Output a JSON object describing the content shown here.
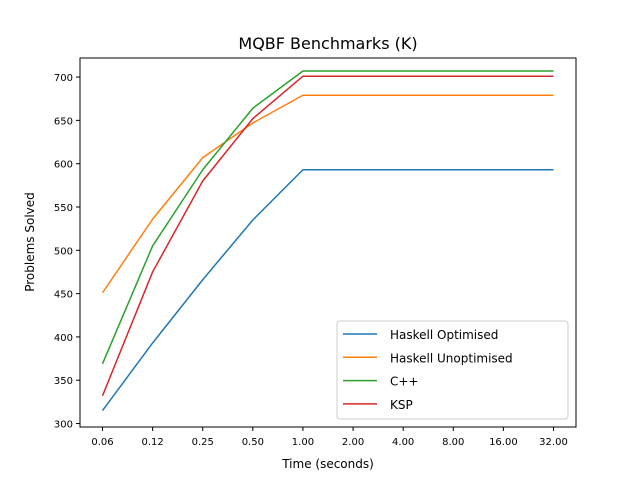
{
  "chart_data": {
    "type": "line",
    "title": "MQBF Benchmarks (K)",
    "xlabel": "Time (seconds)",
    "ylabel": "Problems Solved",
    "x": [
      "0.06",
      "0.12",
      "0.25",
      "0.50",
      "1.00",
      "2.00",
      "4.00",
      "8.00",
      "16.00",
      "32.00"
    ],
    "y_ticks": [
      "300",
      "350",
      "400",
      "450",
      "500",
      "550",
      "600",
      "650",
      "700"
    ],
    "ylim": [
      296,
      722
    ],
    "grid": false,
    "legend_position": "lower-right",
    "series": [
      {
        "name": "Haskell Optimised",
        "color": "#1f77b4",
        "values": [
          315,
          393,
          466,
          535,
          593,
          593,
          593,
          593,
          593,
          593
        ]
      },
      {
        "name": "Haskell Unoptimised",
        "color": "#ff7f0e",
        "values": [
          451,
          536,
          607,
          647,
          679,
          679,
          679,
          679,
          679,
          679
        ]
      },
      {
        "name": "C++",
        "color": "#2ca02c",
        "values": [
          369,
          505,
          593,
          664,
          707,
          707,
          707,
          707,
          707,
          707
        ]
      },
      {
        "name": "KSP",
        "color": "#d62728",
        "values": [
          332,
          475,
          580,
          652,
          701,
          701,
          701,
          701,
          701,
          701
        ]
      }
    ]
  }
}
